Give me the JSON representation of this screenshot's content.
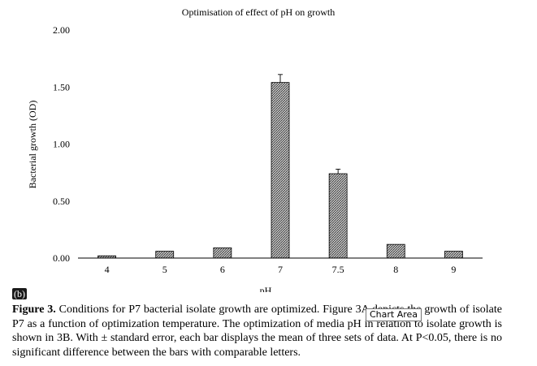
{
  "chart_data": {
    "type": "bar",
    "title": "Optimisation of effect of pH on growth",
    "xlabel": "pH",
    "ylabel": "Bacterial growth (OD)",
    "categories": [
      "4",
      "5",
      "6",
      "7",
      "7.5",
      "8",
      "9"
    ],
    "values": [
      0.02,
      0.06,
      0.09,
      1.54,
      0.74,
      0.12,
      0.06
    ],
    "errors": [
      0,
      0,
      0,
      0.07,
      0.04,
      0,
      0
    ],
    "ylim": [
      0,
      2.0
    ],
    "yticks": [
      "0.00",
      "0.50",
      "1.00",
      "1.50",
      "2.00"
    ],
    "grid": false,
    "bar_fill": "#9a9a9a"
  },
  "figure": {
    "panel_label": "(b)",
    "caption_bold": "Figure 3.",
    "caption_text": " Conditions for P7 bacterial isolate growth are optimized. Figure 3A depicts the growth of isolate P7 as a function of optimization temperature. The optimization of media pH in relation to isolate growth is shown in 3B. With ± standard error, each bar displays the mean of three sets of data. At P<0.05, there is no significant difference between the bars with comparable letters."
  },
  "tooltip": {
    "label": "Chart Area"
  }
}
